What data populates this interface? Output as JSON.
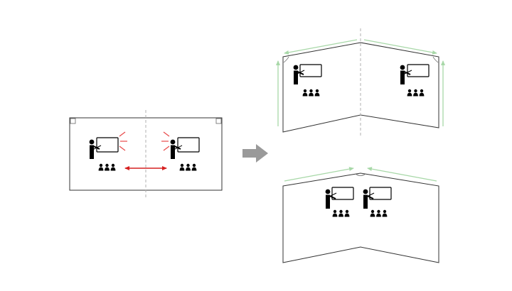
{
  "diagram": {
    "colors": {
      "background": "#ffffff",
      "outline": "#333333",
      "fold_line": "#b0b0b0",
      "conflict_arrow": "#d62020",
      "interference_lines": "#e84a4a",
      "green_arrows": "#a8d8a8",
      "transition_arrow": "#9a9a9a",
      "icon_fill": "#000000"
    },
    "panels": [
      {
        "id": "flat-room",
        "state": "flat",
        "classroom_zones": 2,
        "interference": true
      },
      {
        "id": "folded-away",
        "state": "walls folded away from center",
        "classroom_zones": 2
      },
      {
        "id": "folded-toward",
        "state": "walls folded toward center",
        "classroom_zones": 2
      }
    ],
    "icons": [
      "teacher-icon",
      "whiteboard-icon",
      "students-icon",
      "double-arrow-icon",
      "right-arrow-icon"
    ]
  }
}
